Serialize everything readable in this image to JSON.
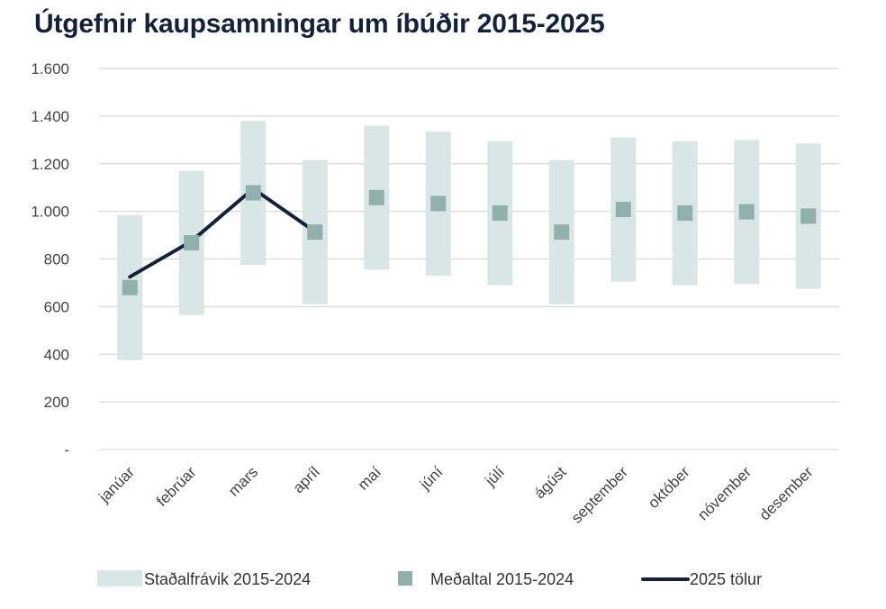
{
  "title": "Útgefnir kaupsamningar um íbúðir 2015-2025",
  "colors": {
    "title": "#14213a",
    "band": "#d8e6e6",
    "marker": "#8fb0ab",
    "line": "#14213a",
    "grid": "#d9d9d9",
    "text": "#444444"
  },
  "legend": {
    "band": "Staðalfrávik 2015-2024",
    "mean": "Meðaltal 2015-2024",
    "line": "2025 tölur"
  },
  "chart_data": {
    "type": "line",
    "title": "Útgefnir kaupsamningar um íbúðir 2015-2025",
    "xlabel": "",
    "ylabel": "",
    "ylim": [
      0,
      1600
    ],
    "yticks": [
      0,
      200,
      400,
      600,
      800,
      1000,
      1200,
      1400,
      1600
    ],
    "ytick_labels": [
      "-",
      "200",
      "400",
      "600",
      "800",
      "1.000",
      "1.200",
      "1.400",
      "1.600"
    ],
    "grid": true,
    "legend_position": "bottom",
    "categories": [
      "janúar",
      "febrúar",
      "mars",
      "apríl",
      "maí",
      "júní",
      "júlí",
      "ágúst",
      "september",
      "október",
      "nóvember",
      "desember"
    ],
    "series": [
      {
        "name": "Staðalfrávik 2015-2024",
        "kind": "range",
        "low": [
          375,
          565,
          775,
          610,
          755,
          730,
          690,
          610,
          705,
          690,
          695,
          675
        ],
        "high": [
          985,
          1170,
          1380,
          1215,
          1360,
          1335,
          1295,
          1215,
          1310,
          1295,
          1300,
          1285
        ]
      },
      {
        "name": "Meðaltal 2015-2024",
        "kind": "marker",
        "values": [
          680,
          868,
          1078,
          913,
          1058,
          1033,
          993,
          913,
          1008,
          993,
          998,
          980
        ]
      },
      {
        "name": "2025 tölur",
        "kind": "line",
        "values": [
          725,
          875,
          1095,
          915,
          null,
          null,
          null,
          null,
          null,
          null,
          null,
          null
        ]
      }
    ]
  }
}
